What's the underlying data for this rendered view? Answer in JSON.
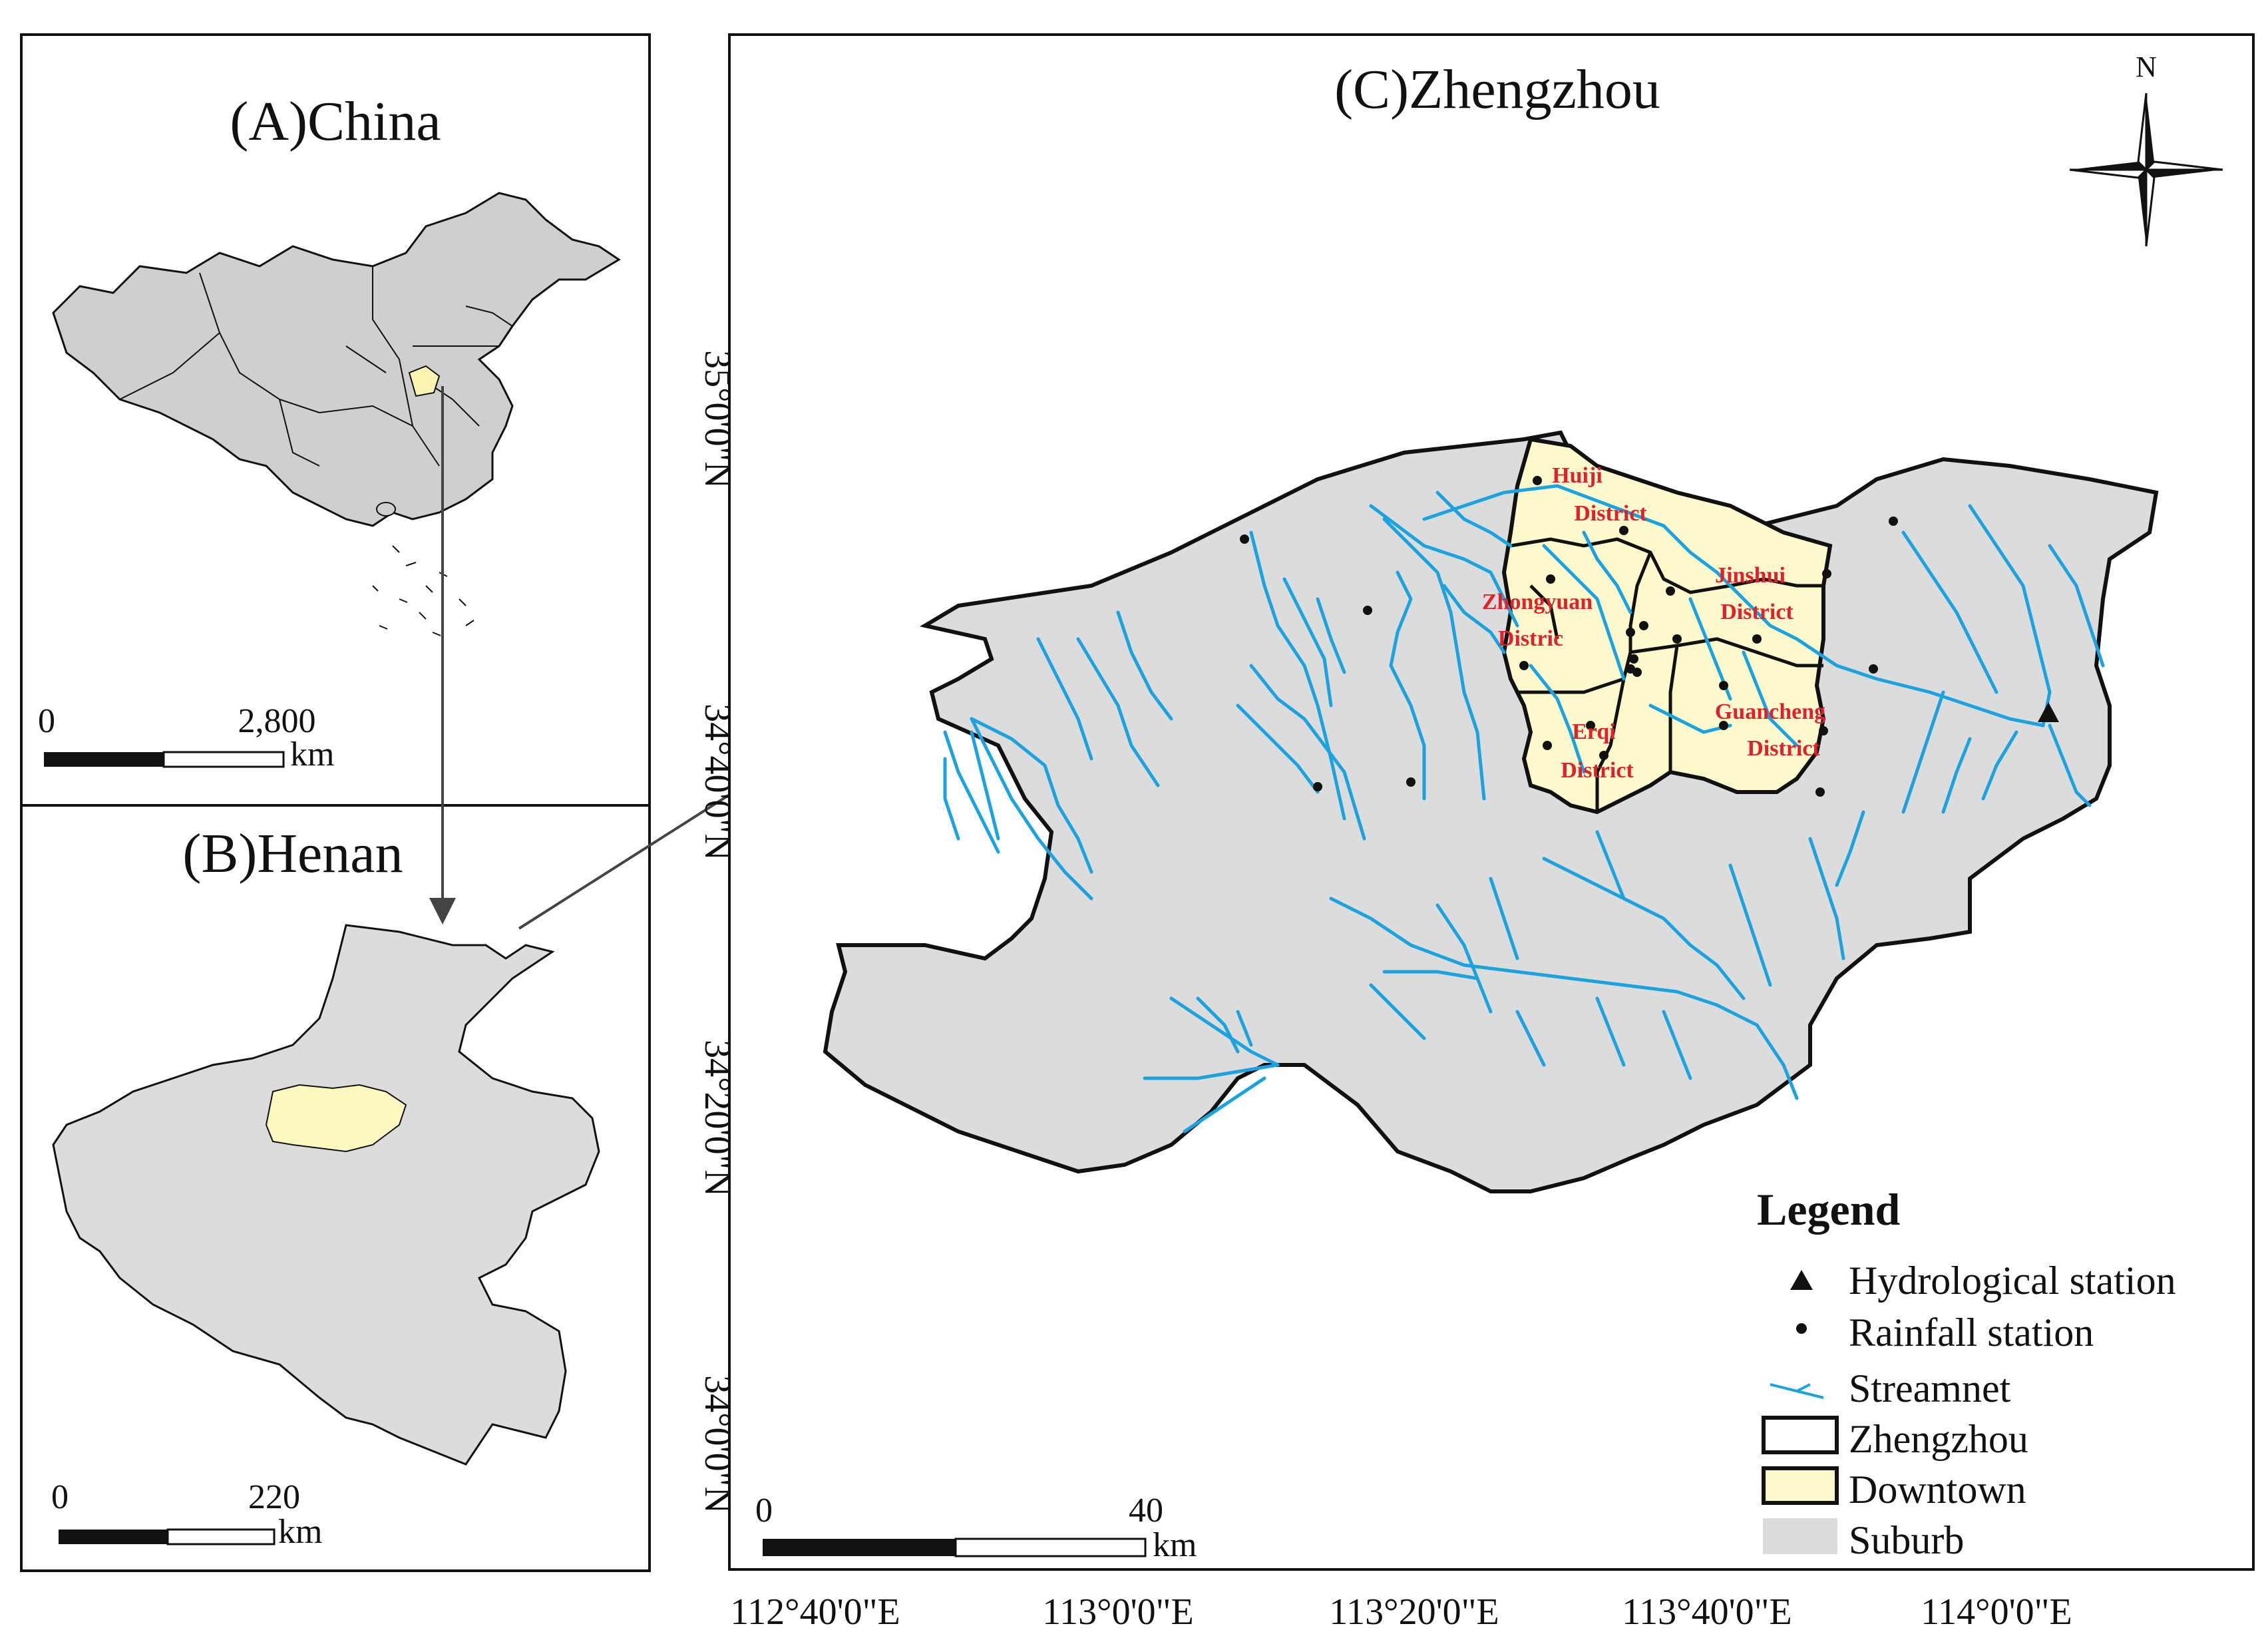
{
  "panels": {
    "china": {
      "title": "(A)China",
      "scale_zero": "0",
      "scale_max": "2,800",
      "scale_unit": "km"
    },
    "henan": {
      "title": "(B)Henan",
      "scale_zero": "0",
      "scale_max": "220",
      "scale_unit": "km"
    },
    "zhengzhou": {
      "title": "(C)Zhengzhou",
      "scale_zero": "0",
      "scale_max": "40",
      "scale_unit": "km"
    }
  },
  "north_arrow": {
    "label": "N"
  },
  "axes": {
    "longitude_ticks": [
      "112°40'0\"E",
      "113°0'0\"E",
      "113°20'0\"E",
      "113°40'0\"E",
      "114°0'0\"E"
    ],
    "latitude_ticks": [
      "34°0'0\"N",
      "34°20'0\"N",
      "34°40'0\"N",
      "35°0'0\"N"
    ]
  },
  "districts": [
    {
      "line1": "Huiji",
      "line2": "District"
    },
    {
      "line1": "Zhongyuan",
      "line2": "Distric"
    },
    {
      "line1": "Jinshui",
      "line2": "District"
    },
    {
      "line1": "Erqi",
      "line2": "District"
    },
    {
      "line1": "Guancheng",
      "line2": "District"
    }
  ],
  "legend": {
    "title": "Legend",
    "items": [
      {
        "label": "Hydrological station",
        "symbol": "triangle"
      },
      {
        "label": "Rainfall station",
        "symbol": "dot"
      },
      {
        "label": "Streamnet",
        "symbol": "stream"
      },
      {
        "label": "Zhengzhou",
        "symbol": "outline"
      },
      {
        "label": "Downtown",
        "symbol": "downtown"
      },
      {
        "label": "Suburb",
        "symbol": "suburb"
      }
    ]
  },
  "colors": {
    "suburb": "#dcdcdc",
    "downtown": "#fdf9cc",
    "stream": "#1ba3e0",
    "district_label": "#e0202a",
    "outline": "#111111"
  }
}
